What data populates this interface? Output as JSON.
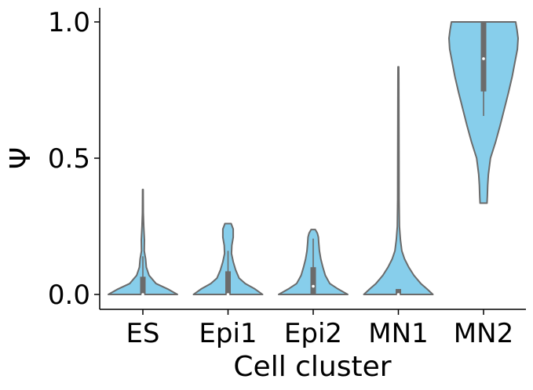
{
  "chart_data": {
    "type": "violin",
    "xlabel": "Cell cluster",
    "ylabel": "Ψ",
    "ylim": [
      -0.055,
      1.05
    ],
    "yticks": [
      0.0,
      0.5,
      1.0
    ],
    "ytick_labels": [
      "0.0",
      "0.5",
      "1.0"
    ],
    "grid": false,
    "colors": {
      "fill": "#87CEEB",
      "edge": "#6b6b6b",
      "box": "#6b6b6b",
      "median": "#ffffff"
    },
    "categories": [
      "ES",
      "Epi1",
      "Epi2",
      "MN1",
      "MN2"
    ],
    "violins": [
      {
        "name": "ES",
        "min": 0.0,
        "max": 0.385,
        "q1": 0.0,
        "median": 0.0,
        "q3": 0.065,
        "whisker_low": 0.0,
        "whisker_high": 0.14,
        "density": [
          [
            0.0,
            1.0
          ],
          [
            0.02,
            0.72
          ],
          [
            0.04,
            0.38
          ],
          [
            0.07,
            0.18
          ],
          [
            0.1,
            0.1
          ],
          [
            0.13,
            0.08
          ],
          [
            0.16,
            0.04
          ],
          [
            0.2,
            0.045
          ],
          [
            0.25,
            0.025
          ],
          [
            0.3,
            0.012
          ],
          [
            0.34,
            0.01
          ],
          [
            0.385,
            0.008
          ]
        ]
      },
      {
        "name": "Epi1",
        "min": 0.0,
        "max": 0.26,
        "q1": 0.0,
        "median": 0.0,
        "q3": 0.085,
        "whisker_low": 0.0,
        "whisker_high": 0.16,
        "density": [
          [
            0.0,
            1.0
          ],
          [
            0.02,
            0.78
          ],
          [
            0.04,
            0.5
          ],
          [
            0.06,
            0.32
          ],
          [
            0.09,
            0.22
          ],
          [
            0.12,
            0.15
          ],
          [
            0.15,
            0.1
          ],
          [
            0.18,
            0.11
          ],
          [
            0.21,
            0.15
          ],
          [
            0.24,
            0.15
          ],
          [
            0.26,
            0.09
          ]
        ]
      },
      {
        "name": "Epi2",
        "min": 0.0,
        "max": 0.238,
        "q1": 0.0,
        "median": 0.03,
        "q3": 0.1,
        "whisker_low": 0.0,
        "whisker_high": 0.205,
        "density": [
          [
            0.0,
            1.0
          ],
          [
            0.02,
            0.72
          ],
          [
            0.04,
            0.48
          ],
          [
            0.07,
            0.35
          ],
          [
            0.1,
            0.28
          ],
          [
            0.13,
            0.22
          ],
          [
            0.16,
            0.18
          ],
          [
            0.19,
            0.16
          ],
          [
            0.21,
            0.15
          ],
          [
            0.225,
            0.12
          ],
          [
            0.238,
            0.06
          ]
        ]
      },
      {
        "name": "MN1",
        "min": 0.0,
        "max": 0.835,
        "q1": 0.0,
        "median": 0.0,
        "q3": 0.02,
        "whisker_low": 0.0,
        "whisker_high": 0.02,
        "density": [
          [
            0.0,
            1.0
          ],
          [
            0.02,
            0.83
          ],
          [
            0.04,
            0.65
          ],
          [
            0.07,
            0.45
          ],
          [
            0.1,
            0.3
          ],
          [
            0.13,
            0.18
          ],
          [
            0.16,
            0.1
          ],
          [
            0.2,
            0.06
          ],
          [
            0.25,
            0.03
          ],
          [
            0.35,
            0.02
          ],
          [
            0.5,
            0.018
          ],
          [
            0.65,
            0.015
          ],
          [
            0.8,
            0.012
          ],
          [
            0.835,
            0.01
          ]
        ]
      },
      {
        "name": "MN2",
        "min": 0.335,
        "max": 1.0,
        "q1": 0.745,
        "median": 0.865,
        "q3": 1.0,
        "whisker_low": 0.655,
        "whisker_high": 1.0,
        "density": [
          [
            0.335,
            0.1
          ],
          [
            0.36,
            0.11
          ],
          [
            0.4,
            0.12
          ],
          [
            0.44,
            0.14
          ],
          [
            0.5,
            0.2
          ],
          [
            0.56,
            0.35
          ],
          [
            0.62,
            0.48
          ],
          [
            0.68,
            0.6
          ],
          [
            0.74,
            0.72
          ],
          [
            0.8,
            0.83
          ],
          [
            0.86,
            0.92
          ],
          [
            0.9,
            0.98
          ],
          [
            0.94,
            1.0
          ],
          [
            0.97,
            0.97
          ],
          [
            1.0,
            0.93
          ]
        ]
      }
    ]
  }
}
